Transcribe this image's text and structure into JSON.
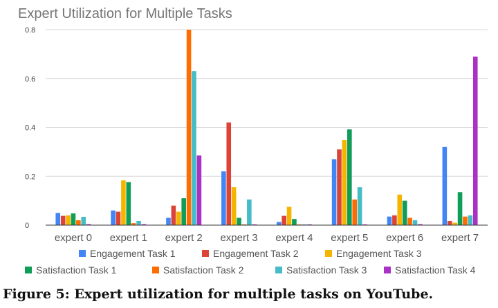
{
  "chart_data": {
    "type": "bar",
    "title": "Expert Utilization for Multiple Tasks",
    "categories": [
      "expert 0",
      "expert 1",
      "expert 2",
      "expert 3",
      "expert 4",
      "expert 5",
      "expert 6",
      "expert 7"
    ],
    "ylim": [
      0,
      0.8
    ],
    "yticks": [
      0,
      0.2,
      0.4,
      0.6,
      0.8
    ],
    "ytick_labels": [
      "0",
      "0.2",
      "0.4",
      "0.6",
      "0.8"
    ],
    "grid": true,
    "legend_position": "bottom",
    "series": [
      {
        "name": "Engagement Task 1",
        "color": "#4285f4",
        "values": [
          0.05,
          0.06,
          0.03,
          0.22,
          0.013,
          0.27,
          0.035,
          0.32
        ]
      },
      {
        "name": "Engagement Task 2",
        "color": "#db4437",
        "values": [
          0.038,
          0.055,
          0.08,
          0.42,
          0.038,
          0.31,
          0.04,
          0.017
        ]
      },
      {
        "name": "Engagement Task 3",
        "color": "#f4b400",
        "values": [
          0.04,
          0.183,
          0.055,
          0.155,
          0.075,
          0.348,
          0.125,
          0.01
        ]
      },
      {
        "name": "Satisfaction Task 1",
        "color": "#0f9d58",
        "values": [
          0.048,
          0.176,
          0.11,
          0.03,
          0.025,
          0.392,
          0.1,
          0.135
        ]
      },
      {
        "name": "Satisfaction Task 2",
        "color": "#ff6d00",
        "values": [
          0.02,
          0.008,
          0.8,
          0.003,
          0.003,
          0.105,
          0.03,
          0.035
        ]
      },
      {
        "name": "Satisfaction Task 3",
        "color": "#46bdc6",
        "values": [
          0.034,
          0.017,
          0.63,
          0.105,
          0.003,
          0.155,
          0.02,
          0.04
        ]
      },
      {
        "name": "Satisfaction Task 4",
        "color": "#ab30c4",
        "values": [
          0.004,
          0.004,
          0.285,
          0.003,
          0.003,
          0.003,
          0.004,
          0.69
        ]
      }
    ]
  },
  "caption": "Figure 5: Expert utilization for multiple tasks on YouTube."
}
